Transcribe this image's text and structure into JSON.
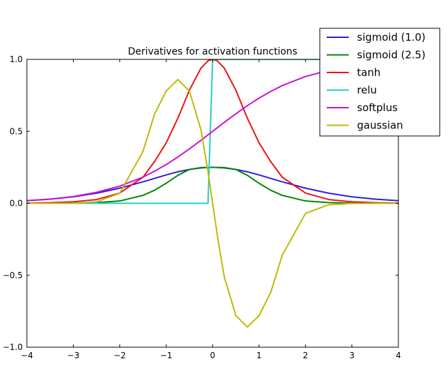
{
  "chart_data": {
    "type": "line",
    "title": "Derivatives for activation functions",
    "xlabel": "",
    "ylabel": "",
    "xlim": [
      -4,
      4
    ],
    "ylim": [
      -1.0,
      1.0
    ],
    "x_ticks": [
      -4,
      -3,
      -2,
      -1,
      0,
      1,
      2,
      3,
      4
    ],
    "x_tick_labels": [
      "−4",
      "−3",
      "−2",
      "−1",
      "0",
      "1",
      "2",
      "3",
      "4"
    ],
    "y_ticks": [
      -1.0,
      -0.5,
      0.0,
      0.5,
      1.0
    ],
    "y_tick_labels": [
      "−1.0",
      "−0.5",
      "0.0",
      "0.5",
      "1.0"
    ],
    "grid": false,
    "legend_position": "top-right",
    "x": [
      -4.0,
      -3.5,
      -3.0,
      -2.5,
      -2.0,
      -1.5,
      -1.25,
      -1.0,
      -0.75,
      -0.5,
      -0.25,
      -0.1,
      0.0,
      0.1,
      0.25,
      0.5,
      0.75,
      1.0,
      1.25,
      1.5,
      2.0,
      2.5,
      3.0,
      3.5,
      4.0
    ],
    "series": [
      {
        "name": "sigmoid (1.0)",
        "color": "#2b1de0",
        "values": [
          0.018,
          0.029,
          0.045,
          0.07,
          0.105,
          0.149,
          0.173,
          0.197,
          0.219,
          0.235,
          0.246,
          0.249,
          0.25,
          0.249,
          0.246,
          0.235,
          0.219,
          0.197,
          0.173,
          0.149,
          0.105,
          0.07,
          0.045,
          0.029,
          0.018
        ]
      },
      {
        "name": "sigmoid (2.5)",
        "color": "#008800",
        "values": [
          0.0,
          0.0,
          0.001,
          0.005,
          0.016,
          0.055,
          0.091,
          0.139,
          0.194,
          0.235,
          0.248,
          0.249,
          0.25,
          0.249,
          0.248,
          0.235,
          0.194,
          0.139,
          0.091,
          0.055,
          0.016,
          0.005,
          0.001,
          0.0,
          0.0
        ]
      },
      {
        "name": "tanh",
        "color": "#ee1111",
        "values": [
          0.001,
          0.004,
          0.01,
          0.026,
          0.071,
          0.181,
          0.29,
          0.42,
          0.59,
          0.786,
          0.94,
          0.99,
          1.0,
          0.99,
          0.94,
          0.786,
          0.59,
          0.42,
          0.29,
          0.181,
          0.071,
          0.026,
          0.01,
          0.004,
          0.001
        ]
      },
      {
        "name": "relu",
        "color": "#22cccc",
        "values": [
          0.0,
          0.0,
          0.0,
          0.0,
          0.0,
          0.0,
          0.0,
          0.0,
          0.0,
          0.0,
          0.0,
          0.0,
          1.0,
          1.0,
          1.0,
          1.0,
          1.0,
          1.0,
          1.0,
          1.0,
          1.0,
          1.0,
          1.0,
          1.0,
          1.0
        ]
      },
      {
        "name": "softplus",
        "color": "#cc11cc",
        "values": [
          0.018,
          0.029,
          0.047,
          0.076,
          0.119,
          0.182,
          0.223,
          0.269,
          0.321,
          0.378,
          0.438,
          0.475,
          0.5,
          0.525,
          0.562,
          0.622,
          0.679,
          0.731,
          0.777,
          0.818,
          0.881,
          0.924,
          0.953,
          0.971,
          0.982
        ]
      },
      {
        "name": "gaussian",
        "color": "#bbbb00",
        "values": [
          0.0,
          0.0,
          0.001,
          0.01,
          0.07,
          0.36,
          0.62,
          0.78,
          0.86,
          0.78,
          0.51,
          0.22,
          0.0,
          -0.22,
          -0.51,
          -0.78,
          -0.86,
          -0.78,
          -0.62,
          -0.36,
          -0.07,
          -0.01,
          -0.001,
          0.0,
          0.0
        ]
      }
    ]
  }
}
